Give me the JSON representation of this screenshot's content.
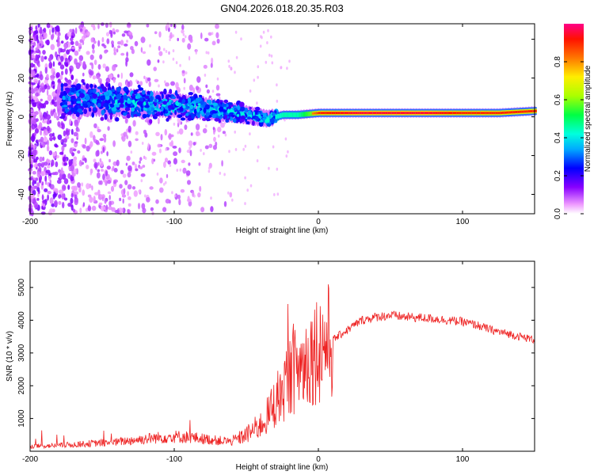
{
  "chart_data": [
    {
      "type": "heatmap",
      "title": "GN04.2026.018.20.35.R03",
      "xlabel": "Height of straight line (km)",
      "ylabel": "Frequency (Hz)",
      "xlim": [
        -200,
        150
      ],
      "ylim": [
        -50,
        48
      ],
      "x_ticks": [
        -200,
        -100,
        0,
        100
      ],
      "y_ticks": [
        -40,
        -20,
        0,
        20,
        40
      ],
      "colorbar": {
        "label": "Normalized spectral amplitude",
        "ticks": [
          0.0,
          0.2,
          0.4,
          0.6,
          0.8
        ],
        "range": [
          0,
          1
        ]
      },
      "ridge": {
        "x": [
          -175,
          -150,
          -125,
          -100,
          -75,
          -50,
          -35,
          -25,
          -15,
          0,
          25,
          50,
          75,
          100,
          125,
          150
        ],
        "center_freq": [
          9,
          8,
          7,
          6,
          4,
          1,
          -1,
          1,
          1,
          2,
          2,
          2,
          2,
          2,
          2,
          3
        ],
        "amplitude": [
          0.35,
          0.4,
          0.45,
          0.45,
          0.45,
          0.45,
          0.5,
          0.6,
          0.6,
          0.9,
          0.95,
          0.95,
          0.95,
          0.9,
          0.9,
          0.9
        ]
      }
    },
    {
      "type": "line",
      "title": "",
      "xlabel": "Height of straight line (km)",
      "ylabel": "SNR (10 * v/v)",
      "xlim": [
        -200,
        150
      ],
      "ylim": [
        0,
        5800
      ],
      "x_ticks": [
        -200,
        -100,
        0,
        100
      ],
      "y_ticks": [
        1000,
        2000,
        3000,
        4000,
        5000
      ],
      "series": [
        {
          "name": "SNR",
          "color": "#ee2222",
          "x": [
            -200,
            -180,
            -160,
            -140,
            -120,
            -110,
            -100,
            -90,
            -80,
            -70,
            -60,
            -50,
            -40,
            -35,
            -30,
            -25,
            -20,
            -15,
            -10,
            -5,
            0,
            10,
            20,
            30,
            40,
            50,
            60,
            80,
            100,
            110,
            120,
            130,
            140,
            150
          ],
          "values": [
            150,
            180,
            230,
            280,
            380,
            420,
            450,
            430,
            380,
            330,
            300,
            500,
            800,
            1100,
            1500,
            1900,
            2300,
            2500,
            2700,
            3000,
            3200,
            3400,
            3700,
            4000,
            4100,
            4150,
            4100,
            4050,
            3950,
            3850,
            3700,
            3600,
            3500,
            3400
          ]
        }
      ]
    }
  ]
}
